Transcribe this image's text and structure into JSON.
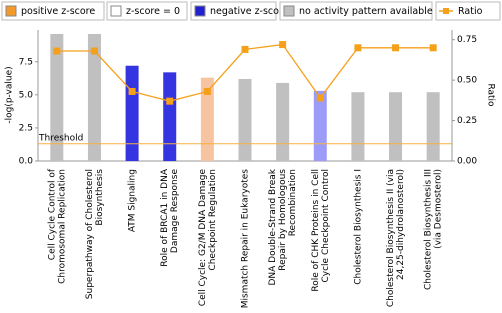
{
  "chart_data": {
    "type": "bar",
    "categories": [
      [
        "Cell Cycle Control of",
        "Chromosomal Replication"
      ],
      [
        "Superpathway of Cholesterol",
        "Biosynthesis"
      ],
      [
        "ATM Signaling"
      ],
      [
        "Role of BRCA1 in DNA",
        "Damage Response"
      ],
      [
        "Cell Cycle: G2/M DNA Damage",
        "Checkpoint Regulation"
      ],
      [
        "Mismatch Repair in Eukaryotes"
      ],
      [
        "DNA Double-Strand Break",
        "Repair by Homologous",
        "Recombination"
      ],
      [
        "Role of CHK Proteins in Cell",
        "Cycle Checkpoint Control"
      ],
      [
        "Cholesterol Biosynthesis I"
      ],
      [
        "Cholesterol Biosynthesis II (via",
        "24,25-dihydrolanosterol)"
      ],
      [
        "Cholesterol Biosynthesis III",
        "(via Desmosterol)"
      ]
    ],
    "values": [
      9.6,
      9.6,
      7.2,
      6.7,
      6.3,
      6.2,
      5.9,
      5.3,
      5.2,
      5.2,
      5.2
    ],
    "bar_colors": [
      "#c0c0c0",
      "#c0c0c0",
      "#3434e0",
      "#3434e0",
      "#f7c4a2",
      "#c0c0c0",
      "#c0c0c0",
      "#9c9cf8",
      "#c0c0c0",
      "#c0c0c0",
      "#c0c0c0"
    ],
    "series": [
      {
        "name": "Ratio",
        "type": "line",
        "axis": "y2",
        "color": "#f5a01a",
        "values": [
          0.68,
          0.68,
          0.43,
          0.37,
          0.43,
          0.69,
          0.72,
          0.39,
          0.7,
          0.7,
          0.7
        ]
      }
    ],
    "legend": [
      {
        "name": "positive z-score",
        "color": "#f59a2a"
      },
      {
        "name": "z-score = 0",
        "color": "#ffffff"
      },
      {
        "name": "negative z-score",
        "color": "#2020d0"
      },
      {
        "name": "no activity pattern available",
        "color": "#c0c0c0"
      }
    ],
    "y_label": "-log(p-value)",
    "y2_label": "Ratio",
    "ylim": [
      0,
      9.9
    ],
    "yticks": [
      {
        "value": 0,
        "label": "0.0"
      },
      2.5,
      {
        "value": 5,
        "label": "5.0"
      },
      7.5
    ],
    "y2lim": [
      0,
      0.81
    ],
    "y2ticks": [
      {
        "value": 0,
        "label": "0.00"
      },
      {
        "value": 0.25,
        "label": "0.25"
      },
      {
        "value": 0.5,
        "label": "0.50"
      },
      {
        "value": 0.75,
        "label": "0.75"
      }
    ],
    "threshold": {
      "value": 1.3,
      "label": "Threshold",
      "color": "#f5b042"
    }
  }
}
